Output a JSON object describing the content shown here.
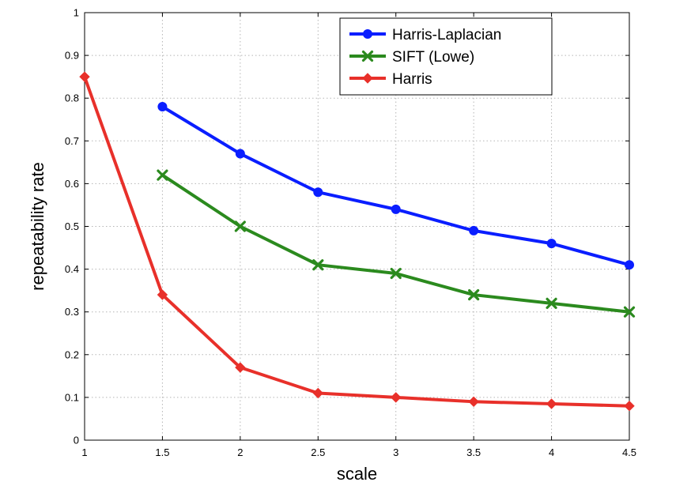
{
  "chart_data": {
    "type": "line",
    "xlabel": "scale",
    "ylabel": "repeatability rate",
    "xlim": [
      1,
      4.5
    ],
    "ylim": [
      0,
      1
    ],
    "x_ticks": [
      "1",
      "1.5",
      "2",
      "2.5",
      "3",
      "3.5",
      "4",
      "4.5"
    ],
    "y_ticks": [
      "0",
      "0.1",
      "0.2",
      "0.3",
      "0.4",
      "0.5",
      "0.6",
      "0.7",
      "0.8",
      "0.9",
      "1"
    ],
    "grid": true,
    "legend_position": "top-right",
    "series": [
      {
        "name": "Harris-Laplacian",
        "color": "#0a1eff",
        "marker": "circle",
        "x": [
          1.5,
          2,
          2.5,
          3,
          3.5,
          4,
          4.5
        ],
        "y": [
          0.78,
          0.67,
          0.58,
          0.54,
          0.49,
          0.46,
          0.41
        ]
      },
      {
        "name": "SIFT (Lowe)",
        "color": "#2b8a1e",
        "marker": "x",
        "x": [
          1.5,
          2,
          2.5,
          3,
          3.5,
          4,
          4.5
        ],
        "y": [
          0.62,
          0.5,
          0.41,
          0.39,
          0.34,
          0.32,
          0.3
        ]
      },
      {
        "name": "Harris",
        "color": "#e8302a",
        "marker": "diamond",
        "x": [
          1,
          1.5,
          2,
          2.5,
          3,
          3.5,
          4,
          4.5
        ],
        "y": [
          0.85,
          0.34,
          0.17,
          0.11,
          0.1,
          0.09,
          0.085,
          0.08
        ]
      }
    ]
  }
}
